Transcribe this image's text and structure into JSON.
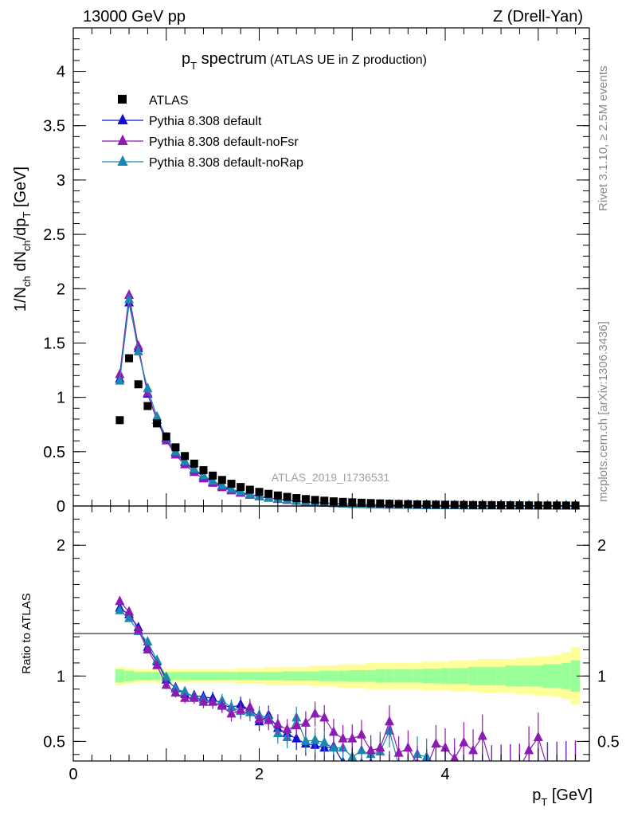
{
  "header": {
    "left": "13000 GeV pp",
    "right": "Z (Drell-Yan)"
  },
  "side_text": {
    "rivet": "Rivet 3.1.10, ≥ 2.5M events",
    "source": "mcplots.cern.ch [arXiv:1306.3436]"
  },
  "main_title": {
    "pt": "p",
    "pt_sub": "T",
    "rest": " spectrum",
    "small": "(ATLAS UE in Z production)"
  },
  "watermark": "ATLAS_2019_I1736531",
  "axes": {
    "y_main_label": "1/N_ch dN_ch/dp_T [GeV]",
    "y_ratio_label": "Ratio to ATLAS",
    "x_label": "p_T [GeV]",
    "x_unit": "[GeV]"
  },
  "legend": [
    {
      "label": "ATLAS",
      "color": "#000000",
      "marker": "square"
    },
    {
      "label": "Pythia 8.308 default",
      "color": "#1010d0",
      "marker": "triangle"
    },
    {
      "label": "Pythia 8.308 default-noFsr",
      "color": "#8e1ab4",
      "marker": "triangle"
    },
    {
      "label": "Pythia 8.308 default-noRap",
      "color": "#1a88b0",
      "marker": "triangle"
    }
  ],
  "chart_data": {
    "type": "scatter",
    "xlim": [
      0,
      5.55
    ],
    "x_ticks": [
      0,
      2,
      4
    ],
    "main": {
      "ylim": [
        0,
        4.4
      ],
      "y_ticks": [
        0,
        0.5,
        1,
        1.5,
        2,
        2.5,
        3,
        3.5,
        4
      ],
      "x": [
        0.5,
        0.6,
        0.7,
        0.8,
        0.9,
        1.0,
        1.1,
        1.2,
        1.3,
        1.4,
        1.5,
        1.6,
        1.7,
        1.8,
        1.9,
        2.0,
        2.1,
        2.2,
        2.3,
        2.4,
        2.5,
        2.6,
        2.7,
        2.8,
        2.9,
        3.0,
        3.1,
        3.2,
        3.3,
        3.4,
        3.5,
        3.6,
        3.7,
        3.8,
        3.9,
        4.0,
        4.1,
        4.2,
        4.3,
        4.4,
        4.5,
        4.6,
        4.7,
        4.8,
        4.9,
        5.0,
        5.1,
        5.2,
        5.3,
        5.4
      ],
      "series": [
        {
          "name": "ATLAS",
          "values": [
            0.79,
            1.36,
            1.12,
            0.92,
            0.76,
            0.64,
            0.54,
            0.46,
            0.39,
            0.33,
            0.28,
            0.24,
            0.205,
            0.175,
            0.15,
            0.13,
            0.112,
            0.097,
            0.084,
            0.073,
            0.064,
            0.056,
            0.049,
            0.043,
            0.038,
            0.034,
            0.03,
            0.027,
            0.024,
            0.021,
            0.019,
            0.017,
            0.015,
            0.014,
            0.013,
            0.012,
            0.011,
            0.01,
            0.009,
            0.0085,
            0.008,
            0.0075,
            0.007,
            0.0065,
            0.006,
            0.0055,
            0.005,
            0.0048,
            0.0046,
            0.0044
          ]
        },
        {
          "name": "Pythia 8.308 default",
          "values": [
            1.17,
            1.87,
            1.45,
            1.03,
            0.79,
            0.62,
            0.49,
            0.4,
            0.33,
            0.27,
            0.22,
            0.18,
            0.15,
            0.125,
            0.105,
            0.09,
            0.075,
            0.063,
            0.053,
            0.045,
            0.038,
            0.032,
            0.027,
            0.023,
            0.019,
            0.016,
            0.014,
            0.012,
            0.01,
            0.009,
            0.008,
            0.007,
            0.006,
            0.005,
            0.005,
            0.004,
            0.004,
            0.003,
            0.003,
            0.003,
            0.003,
            0.002,
            0.002,
            0.002,
            0.002,
            0.002,
            0.002,
            0.002,
            0.002,
            0.002
          ]
        },
        {
          "name": "Pythia 8.308 default-noFsr",
          "values": [
            1.21,
            1.94,
            1.47,
            1.04,
            0.79,
            0.6,
            0.47,
            0.38,
            0.31,
            0.25,
            0.21,
            0.17,
            0.14,
            0.118,
            0.1,
            0.085,
            0.072,
            0.061,
            0.052,
            0.044,
            0.038,
            0.033,
            0.028,
            0.024,
            0.021,
            0.018,
            0.015,
            0.013,
            0.011,
            0.01,
            0.009,
            0.008,
            0.007,
            0.006,
            0.005,
            0.005,
            0.004,
            0.004,
            0.003,
            0.003,
            0.003,
            0.003,
            0.002,
            0.002,
            0.002,
            0.002,
            0.002,
            0.002,
            0.002,
            0.002
          ]
        },
        {
          "name": "Pythia 8.308 default-noRap",
          "values": [
            1.15,
            1.9,
            1.42,
            1.08,
            0.82,
            0.63,
            0.5,
            0.41,
            0.34,
            0.28,
            0.23,
            0.19,
            0.155,
            0.13,
            0.108,
            0.09,
            0.076,
            0.064,
            0.054,
            0.046,
            0.039,
            0.033,
            0.028,
            0.024,
            0.02,
            0.017,
            0.015,
            0.013,
            0.011,
            0.009,
            0.008,
            0.007,
            0.006,
            0.005,
            0.005,
            0.004,
            0.004,
            0.003,
            0.003,
            0.003,
            0.003,
            0.002,
            0.002,
            0.002,
            0.002,
            0.002,
            0.002,
            0.002,
            0.002,
            0.002
          ]
        }
      ]
    },
    "ratio": {
      "ylim": [
        0.35,
        2.3
      ],
      "y_ticks": [
        0.5,
        1,
        2
      ],
      "ylabel": "Ratio to ATLAS",
      "band_inner_halfwidth": [
        0.05,
        0.04,
        0.03,
        0.03,
        0.03,
        0.03,
        0.03,
        0.03,
        0.03,
        0.03,
        0.03,
        0.03,
        0.03,
        0.03,
        0.03,
        0.03,
        0.03,
        0.03,
        0.035,
        0.035,
        0.035,
        0.035,
        0.04,
        0.04,
        0.04,
        0.045,
        0.045,
        0.045,
        0.05,
        0.05,
        0.05,
        0.05,
        0.05,
        0.055,
        0.055,
        0.06,
        0.06,
        0.06,
        0.07,
        0.07,
        0.07,
        0.07,
        0.08,
        0.08,
        0.08,
        0.08,
        0.09,
        0.09,
        0.1,
        0.12
      ],
      "band_outer_halfwidth": [
        0.07,
        0.06,
        0.05,
        0.05,
        0.05,
        0.05,
        0.05,
        0.05,
        0.05,
        0.05,
        0.05,
        0.05,
        0.05,
        0.06,
        0.06,
        0.06,
        0.07,
        0.07,
        0.07,
        0.07,
        0.07,
        0.08,
        0.08,
        0.08,
        0.09,
        0.09,
        0.09,
        0.1,
        0.1,
        0.1,
        0.1,
        0.1,
        0.1,
        0.11,
        0.11,
        0.11,
        0.12,
        0.12,
        0.12,
        0.13,
        0.13,
        0.13,
        0.13,
        0.14,
        0.14,
        0.15,
        0.15,
        0.16,
        0.18,
        0.22
      ],
      "series": [
        {
          "name": "Pythia 8.308 default",
          "values": [
            1.52,
            1.47,
            1.37,
            1.22,
            1.11,
            0.97,
            0.91,
            0.86,
            0.85,
            0.84,
            0.83,
            0.78,
            0.76,
            0.78,
            0.74,
            0.65,
            0.7,
            0.6,
            0.56,
            0.52,
            0.48,
            0.47,
            0.45,
            0.46,
            0.34,
            0.3,
            0.33,
            0.33,
            0.3,
            0.3,
            0.3,
            0.3,
            0.3,
            0.3,
            0.3,
            0.3,
            0.3,
            0.3,
            0.3,
            0.3,
            0.3,
            0.3,
            0.3,
            0.3,
            0.3,
            0.3,
            0.3,
            0.3,
            0.3,
            0.3
          ]
        },
        {
          "name": "Pythia 8.308 default-noFsr",
          "values": [
            1.57,
            1.49,
            1.35,
            1.2,
            1.08,
            0.93,
            0.87,
            0.83,
            0.83,
            0.8,
            0.8,
            0.77,
            0.71,
            0.74,
            0.76,
            0.67,
            0.66,
            0.63,
            0.59,
            0.62,
            0.64,
            0.71,
            0.68,
            0.57,
            0.52,
            0.52,
            0.55,
            0.43,
            0.45,
            0.65,
            0.41,
            0.45,
            0.33,
            0.3,
            0.48,
            0.45,
            0.37,
            0.49,
            0.43,
            0.54,
            0.3,
            0.3,
            0.3,
            0.3,
            0.43,
            0.53,
            0.3,
            0.3,
            0.3,
            0.3
          ]
        },
        {
          "name": "Pythia 8.308 default-noRap",
          "values": [
            1.5,
            1.44,
            1.34,
            1.26,
            1.12,
            0.99,
            0.9,
            0.88,
            0.84,
            0.82,
            0.8,
            0.81,
            0.76,
            0.73,
            0.72,
            0.7,
            0.68,
            0.56,
            0.53,
            0.68,
            0.5,
            0.51,
            0.49,
            0.45,
            0.45,
            0.38,
            0.43,
            0.4,
            0.42,
            0.58,
            0.32,
            0.3,
            0.4,
            0.38,
            0.3,
            0.3,
            0.3,
            0.3,
            0.3,
            0.3,
            0.3,
            0.3,
            0.3,
            0.3,
            0.3,
            0.3,
            0.3,
            0.3,
            0.3,
            0.3
          ]
        }
      ]
    }
  }
}
